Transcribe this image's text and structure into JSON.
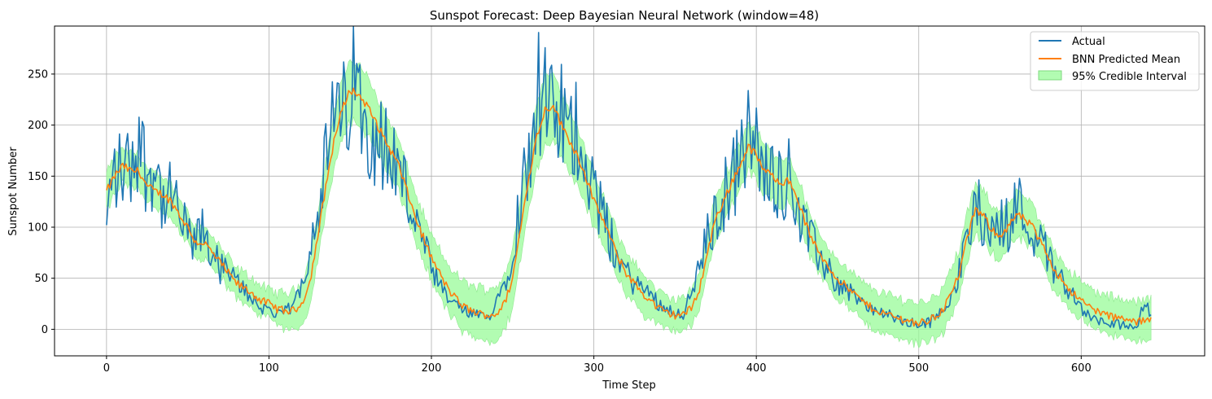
{
  "chart_data": {
    "type": "line",
    "title": "Sunspot Forecast: Deep Bayesian Neural Network (window=48)",
    "xlabel": "Time Step",
    "ylabel": "Sunspot Number",
    "xlim": [
      -32,
      676
    ],
    "ylim": [
      -26,
      297
    ],
    "xticks": [
      0,
      100,
      200,
      300,
      400,
      500,
      600
    ],
    "yticks": [
      0,
      50,
      100,
      150,
      200,
      250
    ],
    "grid": true,
    "legend_position": "top-right",
    "colors": {
      "actual": "#1f77b4",
      "predicted": "#ff7f0e",
      "interval_fill": "#98fb98",
      "interval_edge": "#8fe88f",
      "grid": "#b0b0b0"
    },
    "series": [
      {
        "name": "Actual",
        "kind": "line",
        "note": "noisy observed sunspot numbers; approximate anchor values",
        "anchors": [
          [
            0,
            95
          ],
          [
            3,
            150
          ],
          [
            8,
            155
          ],
          [
            15,
            160
          ],
          [
            20,
            190
          ],
          [
            25,
            150
          ],
          [
            30,
            165
          ],
          [
            35,
            120
          ],
          [
            40,
            130
          ],
          [
            45,
            110
          ],
          [
            50,
            90
          ],
          [
            55,
            85
          ],
          [
            60,
            95
          ],
          [
            65,
            75
          ],
          [
            70,
            60
          ],
          [
            75,
            55
          ],
          [
            80,
            45
          ],
          [
            85,
            40
          ],
          [
            90,
            30
          ],
          [
            95,
            20
          ],
          [
            100,
            22
          ],
          [
            105,
            12
          ],
          [
            110,
            18
          ],
          [
            115,
            22
          ],
          [
            120,
            45
          ],
          [
            125,
            80
          ],
          [
            130,
            120
          ],
          [
            135,
            160
          ],
          [
            140,
            210
          ],
          [
            145,
            200
          ],
          [
            150,
            240
          ],
          [
            155,
            230
          ],
          [
            160,
            210
          ],
          [
            165,
            195
          ],
          [
            170,
            180
          ],
          [
            175,
            170
          ],
          [
            180,
            160
          ],
          [
            185,
            130
          ],
          [
            190,
            110
          ],
          [
            195,
            80
          ],
          [
            200,
            60
          ],
          [
            205,
            40
          ],
          [
            210,
            30
          ],
          [
            215,
            25
          ],
          [
            220,
            18
          ],
          [
            225,
            15
          ],
          [
            230,
            12
          ],
          [
            235,
            10
          ],
          [
            240,
            30
          ],
          [
            245,
            45
          ],
          [
            250,
            80
          ],
          [
            255,
            130
          ],
          [
            260,
            170
          ],
          [
            265,
            240
          ],
          [
            270,
            220
          ],
          [
            275,
            200
          ],
          [
            280,
            210
          ],
          [
            285,
            180
          ],
          [
            290,
            200
          ],
          [
            295,
            170
          ],
          [
            300,
            140
          ],
          [
            305,
            110
          ],
          [
            310,
            90
          ],
          [
            315,
            70
          ],
          [
            320,
            55
          ],
          [
            325,
            45
          ],
          [
            330,
            40
          ],
          [
            335,
            35
          ],
          [
            340,
            25
          ],
          [
            345,
            20
          ],
          [
            350,
            18
          ],
          [
            355,
            15
          ],
          [
            360,
            35
          ],
          [
            365,
            60
          ],
          [
            370,
            90
          ],
          [
            375,
            110
          ],
          [
            380,
            130
          ],
          [
            385,
            150
          ],
          [
            390,
            160
          ],
          [
            395,
            190
          ],
          [
            400,
            175
          ],
          [
            405,
            150
          ],
          [
            410,
            155
          ],
          [
            415,
            145
          ],
          [
            420,
            150
          ],
          [
            425,
            125
          ],
          [
            430,
            100
          ],
          [
            435,
            80
          ],
          [
            440,
            70
          ],
          [
            445,
            55
          ],
          [
            450,
            45
          ],
          [
            455,
            40
          ],
          [
            460,
            35
          ],
          [
            465,
            25
          ],
          [
            470,
            20
          ],
          [
            475,
            18
          ],
          [
            480,
            15
          ],
          [
            485,
            10
          ],
          [
            490,
            8
          ],
          [
            495,
            5
          ],
          [
            500,
            5
          ],
          [
            505,
            6
          ],
          [
            510,
            10
          ],
          [
            515,
            20
          ],
          [
            520,
            35
          ],
          [
            525,
            55
          ],
          [
            530,
            90
          ],
          [
            535,
            120
          ],
          [
            540,
            110
          ],
          [
            545,
            95
          ],
          [
            550,
            100
          ],
          [
            555,
            105
          ],
          [
            560,
            125
          ],
          [
            565,
            110
          ],
          [
            570,
            100
          ],
          [
            575,
            85
          ],
          [
            580,
            70
          ],
          [
            585,
            55
          ],
          [
            590,
            45
          ],
          [
            595,
            35
          ],
          [
            600,
            20
          ],
          [
            605,
            12
          ],
          [
            610,
            8
          ],
          [
            615,
            6
          ],
          [
            620,
            4
          ],
          [
            625,
            5
          ],
          [
            630,
            5
          ],
          [
            635,
            6
          ],
          [
            640,
            30
          ],
          [
            643,
            12
          ]
        ]
      },
      {
        "name": "BNN Predicted Mean",
        "kind": "line",
        "points": [
          [
            0,
            135
          ],
          [
            5,
            150
          ],
          [
            10,
            160
          ],
          [
            15,
            155
          ],
          [
            20,
            155
          ],
          [
            25,
            140
          ],
          [
            30,
            135
          ],
          [
            35,
            132
          ],
          [
            40,
            125
          ],
          [
            45,
            112
          ],
          [
            50,
            100
          ],
          [
            55,
            85
          ],
          [
            60,
            85
          ],
          [
            65,
            75
          ],
          [
            70,
            65
          ],
          [
            75,
            55
          ],
          [
            80,
            45
          ],
          [
            85,
            40
          ],
          [
            90,
            35
          ],
          [
            95,
            28
          ],
          [
            100,
            25
          ],
          [
            105,
            20
          ],
          [
            110,
            18
          ],
          [
            115,
            18
          ],
          [
            120,
            25
          ],
          [
            125,
            45
          ],
          [
            130,
            90
          ],
          [
            135,
            140
          ],
          [
            140,
            185
          ],
          [
            145,
            215
          ],
          [
            150,
            235
          ],
          [
            155,
            230
          ],
          [
            160,
            220
          ],
          [
            165,
            205
          ],
          [
            170,
            190
          ],
          [
            175,
            175
          ],
          [
            180,
            160
          ],
          [
            185,
            135
          ],
          [
            190,
            110
          ],
          [
            195,
            90
          ],
          [
            200,
            70
          ],
          [
            205,
            55
          ],
          [
            210,
            40
          ],
          [
            215,
            30
          ],
          [
            220,
            22
          ],
          [
            225,
            18
          ],
          [
            230,
            15
          ],
          [
            235,
            14
          ],
          [
            240,
            15
          ],
          [
            245,
            25
          ],
          [
            250,
            50
          ],
          [
            255,
            100
          ],
          [
            260,
            150
          ],
          [
            265,
            190
          ],
          [
            270,
            215
          ],
          [
            275,
            220
          ],
          [
            280,
            200
          ],
          [
            285,
            185
          ],
          [
            290,
            170
          ],
          [
            295,
            150
          ],
          [
            300,
            125
          ],
          [
            305,
            110
          ],
          [
            310,
            90
          ],
          [
            315,
            70
          ],
          [
            320,
            55
          ],
          [
            325,
            45
          ],
          [
            330,
            35
          ],
          [
            335,
            28
          ],
          [
            340,
            20
          ],
          [
            345,
            16
          ],
          [
            350,
            14
          ],
          [
            355,
            15
          ],
          [
            360,
            20
          ],
          [
            365,
            40
          ],
          [
            370,
            75
          ],
          [
            375,
            110
          ],
          [
            380,
            125
          ],
          [
            385,
            145
          ],
          [
            390,
            160
          ],
          [
            395,
            180
          ],
          [
            400,
            170
          ],
          [
            405,
            155
          ],
          [
            410,
            150
          ],
          [
            415,
            145
          ],
          [
            420,
            145
          ],
          [
            425,
            130
          ],
          [
            430,
            105
          ],
          [
            435,
            85
          ],
          [
            440,
            72
          ],
          [
            445,
            60
          ],
          [
            450,
            50
          ],
          [
            455,
            42
          ],
          [
            460,
            35
          ],
          [
            465,
            28
          ],
          [
            470,
            22
          ],
          [
            475,
            18
          ],
          [
            480,
            15
          ],
          [
            485,
            12
          ],
          [
            490,
            10
          ],
          [
            495,
            8
          ],
          [
            500,
            6
          ],
          [
            505,
            8
          ],
          [
            510,
            12
          ],
          [
            515,
            20
          ],
          [
            520,
            35
          ],
          [
            525,
            55
          ],
          [
            530,
            90
          ],
          [
            535,
            118
          ],
          [
            540,
            110
          ],
          [
            545,
            98
          ],
          [
            550,
            92
          ],
          [
            555,
            100
          ],
          [
            560,
            112
          ],
          [
            565,
            108
          ],
          [
            570,
            100
          ],
          [
            575,
            85
          ],
          [
            580,
            70
          ],
          [
            585,
            55
          ],
          [
            590,
            45
          ],
          [
            595,
            35
          ],
          [
            600,
            28
          ],
          [
            605,
            22
          ],
          [
            610,
            18
          ],
          [
            615,
            14
          ],
          [
            620,
            12
          ],
          [
            625,
            10
          ],
          [
            630,
            8
          ],
          [
            635,
            7
          ],
          [
            640,
            9
          ],
          [
            643,
            12
          ]
        ]
      },
      {
        "name": "95% Credible Interval",
        "kind": "band",
        "half_width": [
          [
            0,
            18
          ],
          [
            100,
            14
          ],
          [
            130,
            25
          ],
          [
            150,
            30
          ],
          [
            200,
            22
          ],
          [
            250,
            28
          ],
          [
            270,
            35
          ],
          [
            300,
            25
          ],
          [
            350,
            15
          ],
          [
            400,
            25
          ],
          [
            450,
            18
          ],
          [
            500,
            20
          ],
          [
            530,
            25
          ],
          [
            560,
            22
          ],
          [
            600,
            18
          ],
          [
            643,
            20
          ]
        ]
      }
    ]
  }
}
